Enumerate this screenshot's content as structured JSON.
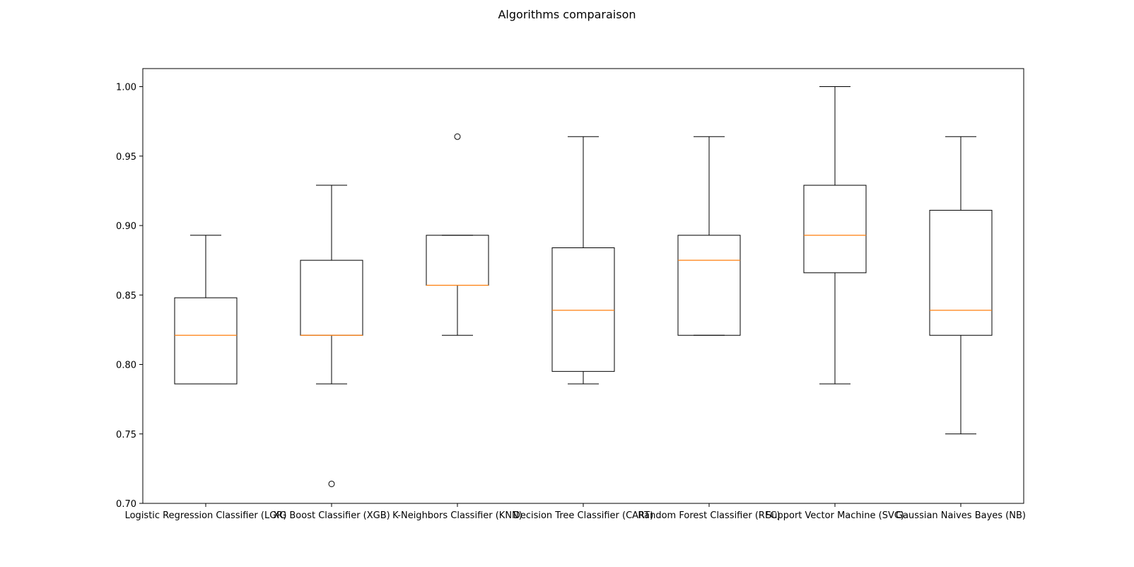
{
  "chart_data": {
    "type": "box",
    "title": "Algorithms comparaison",
    "xlabel": "",
    "ylabel": "",
    "ylim": [
      0.7,
      1.013
    ],
    "yticks": [
      "0.70",
      "0.75",
      "0.80",
      "0.85",
      "0.90",
      "0.95",
      "1.00"
    ],
    "grid": false,
    "categories": [
      "Logistic Regression Classifier (LGR)",
      "XG Boost Classifier (XGB)",
      "K-Neighbors Classifier (KNN)",
      "Decision Tree Classifier (CART)",
      "Random Forest Classifier (RFC)",
      "Support Vector Machine (SVC)",
      "Gaussian Naives Bayes (NB)"
    ],
    "boxes": [
      {
        "whisker_low": 0.786,
        "q1": 0.786,
        "median": 0.821,
        "q3": 0.848,
        "whisker_high": 0.893,
        "outliers": []
      },
      {
        "whisker_low": 0.786,
        "q1": 0.821,
        "median": 0.821,
        "q3": 0.875,
        "whisker_high": 0.929,
        "outliers": [
          0.714
        ]
      },
      {
        "whisker_low": 0.821,
        "q1": 0.857,
        "median": 0.857,
        "q3": 0.893,
        "whisker_high": 0.893,
        "outliers": [
          0.964
        ]
      },
      {
        "whisker_low": 0.786,
        "q1": 0.795,
        "median": 0.839,
        "q3": 0.884,
        "whisker_high": 0.964,
        "outliers": []
      },
      {
        "whisker_low": 0.821,
        "q1": 0.821,
        "median": 0.875,
        "q3": 0.893,
        "whisker_high": 0.964,
        "outliers": []
      },
      {
        "whisker_low": 0.786,
        "q1": 0.866,
        "median": 0.893,
        "q3": 0.929,
        "whisker_high": 1.0,
        "outliers": []
      },
      {
        "whisker_low": 0.75,
        "q1": 0.821,
        "median": 0.839,
        "q3": 0.911,
        "whisker_high": 0.964,
        "outliers": []
      }
    ],
    "colors": {
      "box": "#000000",
      "median": "#ff7f0e",
      "outlier": "#000000"
    }
  }
}
